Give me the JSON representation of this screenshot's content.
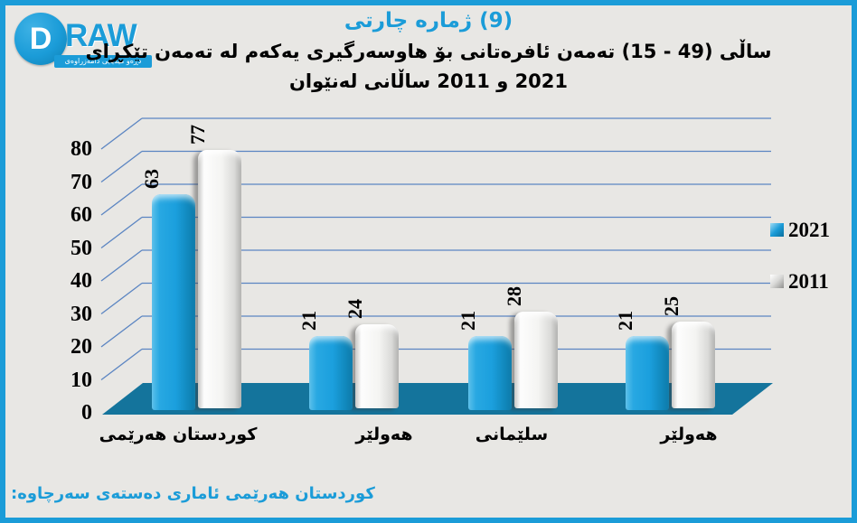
{
  "colors": {
    "accent_blue": "#1b9cd8",
    "bar_2021": "#1b9fdd",
    "bar_2011": "#f2f2ef",
    "floor": "#14749c",
    "gridline": "#5b85c2",
    "background": "#e8e7e4",
    "text": "#000000"
  },
  "logo": {
    "d": "D",
    "raw": "RAW",
    "tagline": "دامەزراوەی میدیایی دڕەو"
  },
  "header": {
    "chart_number": "چارتی ژماره (9)",
    "subtitle_line1": "تێکڕای تەمەن لە یەکەم هاوسەرگیری بۆ ئافرەتانی تەمەن (15 - 49) ساڵی",
    "subtitle_line2": "لەنێوان ساڵانی 2011 و 2021"
  },
  "chart_data": {
    "type": "bar",
    "style": "3d-clustered-column",
    "categories": [
      "هەرێمی کوردستان",
      "هەولێر",
      "سلێمانی",
      "هەولێر"
    ],
    "series": [
      {
        "name": "2021",
        "color": "#1b9fdd",
        "values": [
          63,
          21,
          21,
          21
        ]
      },
      {
        "name": "2011",
        "color": "#f2f2ef",
        "values": [
          77,
          24,
          28,
          25
        ]
      }
    ],
    "ylim": [
      0,
      80
    ],
    "yticks": [
      0,
      10,
      20,
      30,
      40,
      50,
      60,
      70,
      80
    ],
    "grid": true,
    "legend_position": "right",
    "data_labels": "rotated-vertical",
    "floor_color": "#14749c",
    "gridline_color": "#5b85c2"
  },
  "footer": {
    "source_text": "سەرچاوە: دەستەی ئاماری هەرێمی کوردستان"
  }
}
